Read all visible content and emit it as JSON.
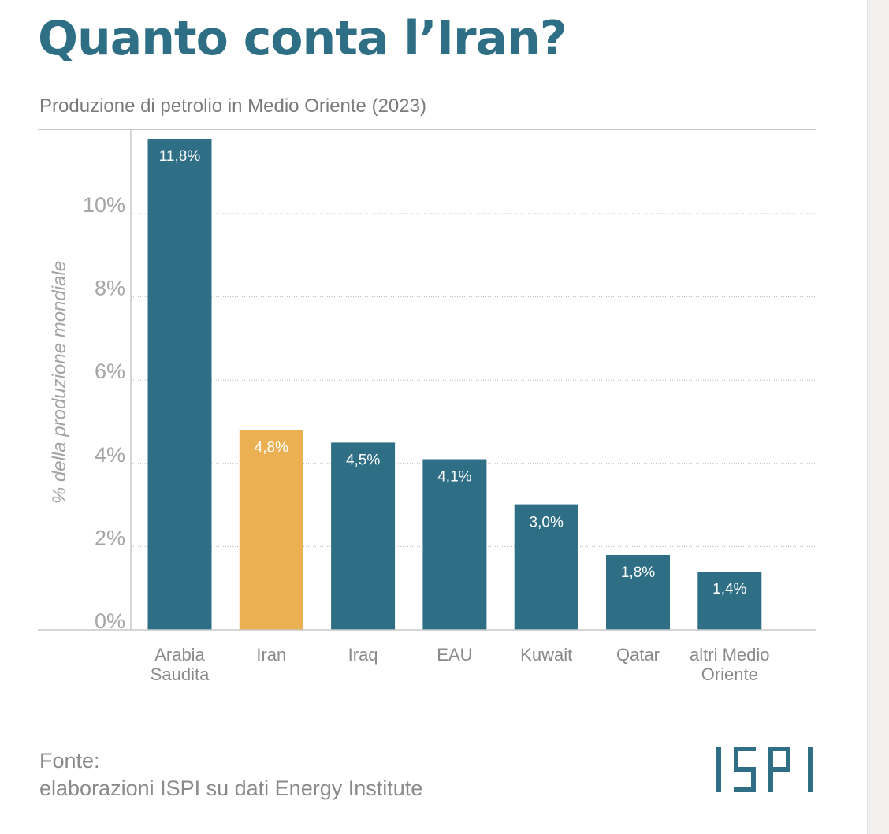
{
  "title": "Quanto conta l’Iran?",
  "subtitle": "Produzione di petrolio in Medio Oriente (2023)",
  "source": {
    "label": "Fonte:",
    "text": "elaborazioni ISPI su dati Energy Institute"
  },
  "logo": {
    "text": "ISPI"
  },
  "colors": {
    "title": "#2f6f86",
    "bar": "#2f6f86",
    "highlight": "#ebb052"
  },
  "chart_data": {
    "type": "bar",
    "title": "Produzione di petrolio in Medio Oriente (2023)",
    "ylabel": "% della produzione mondiale",
    "xlabel": "",
    "ylim": [
      0,
      12
    ],
    "y_ticks": [
      "0%",
      "2%",
      "4%",
      "6%",
      "8%",
      "10%"
    ],
    "grid": true,
    "categories": [
      [
        "Arabia",
        "Saudita"
      ],
      [
        "Iran"
      ],
      [
        "Iraq"
      ],
      [
        "EAU"
      ],
      [
        "Kuwait"
      ],
      [
        "Qatar"
      ],
      [
        "altri Medio",
        "Oriente"
      ]
    ],
    "values": [
      11.8,
      4.8,
      4.5,
      4.1,
      3.0,
      1.8,
      1.4
    ],
    "value_labels": [
      "11,8%",
      "4,8%",
      "4,5%",
      "4,1%",
      "3,0%",
      "1,8%",
      "1,4%"
    ],
    "highlight": [
      "Iran"
    ]
  }
}
